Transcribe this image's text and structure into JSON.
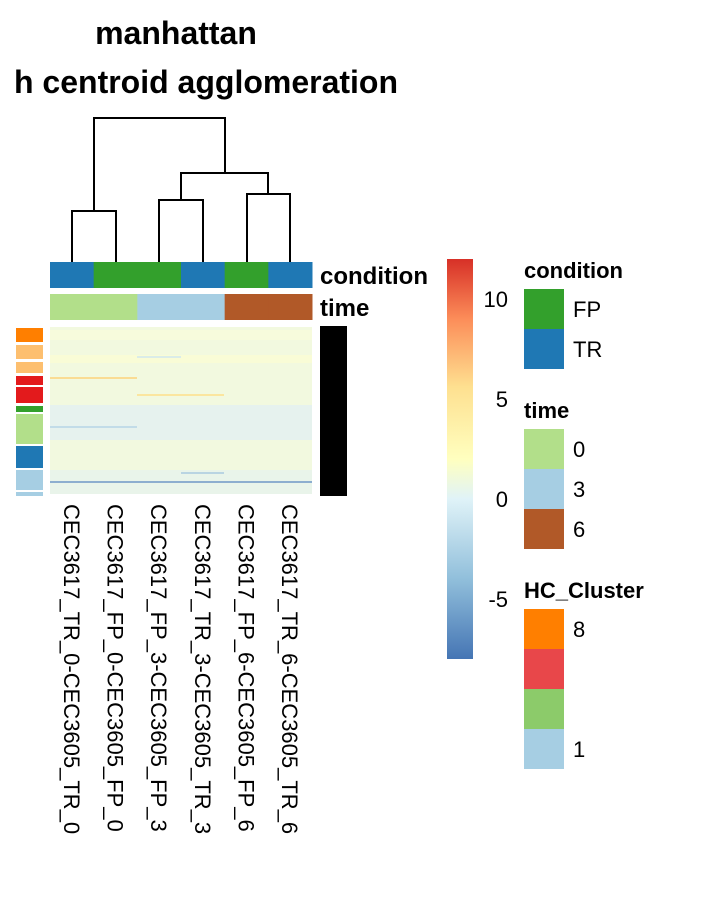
{
  "title": {
    "line1": "manhattan",
    "line2": "h centroid agglomeration"
  },
  "chart_data": {
    "type": "heatmap",
    "columns": [
      "CEC3617_TR_0-CEC3605_TR_0",
      "CEC3617_FP_0-CEC3605_FP_0",
      "CEC3617_FP_3-CEC3605_FP_3",
      "CEC3617_TR_3-CEC3605_TR_3",
      "CEC3617_FP_6-CEC3605_FP_6",
      "CEC3617_TR_6-CEC3605_TR_6"
    ],
    "column_annotations": {
      "condition": [
        "TR",
        "FP",
        "FP",
        "TR",
        "FP",
        "TR"
      ],
      "time": [
        "0",
        "0",
        "3",
        "3",
        "6",
        "6"
      ]
    },
    "annotation_labels": {
      "condition": "condition",
      "time": "time"
    },
    "color_scale": {
      "ticks": [
        10,
        5,
        0,
        -5
      ],
      "range": [
        -8,
        12
      ],
      "colors": [
        "#4575b4",
        "#91bfdb",
        "#e0f3f8",
        "#ffffbf",
        "#fee090",
        "#fc8d59",
        "#d73027"
      ]
    },
    "legends": [
      {
        "title": "condition",
        "items": [
          {
            "label": "FP",
            "color": "#33a02c"
          },
          {
            "label": "TR",
            "color": "#1f78b4"
          }
        ]
      },
      {
        "title": "time",
        "items": [
          {
            "label": "0",
            "color": "#b2df8a"
          },
          {
            "label": "3",
            "color": "#a6cee3"
          },
          {
            "label": "6",
            "color": "#b15928"
          }
        ]
      },
      {
        "title": "HC_Cluster",
        "items": [
          {
            "label": "8",
            "color": "#ff7f00"
          },
          {
            "label": "",
            "color": "#e8474a"
          },
          {
            "label": "",
            "color": "#8ccb6a"
          },
          {
            "label": "1",
            "color": "#a6cee3"
          }
        ]
      }
    ],
    "row_clusters": [
      "#ff7f00",
      "#fdbf6f",
      "#fdbf6f",
      "#e31a1c",
      "#e31a1c",
      "#33a02c",
      "#b2df8a",
      "#1f78b4",
      "#a6cee3",
      "#a6cee3"
    ],
    "dendrogram": "hierarchical clustering of 6 columns"
  }
}
